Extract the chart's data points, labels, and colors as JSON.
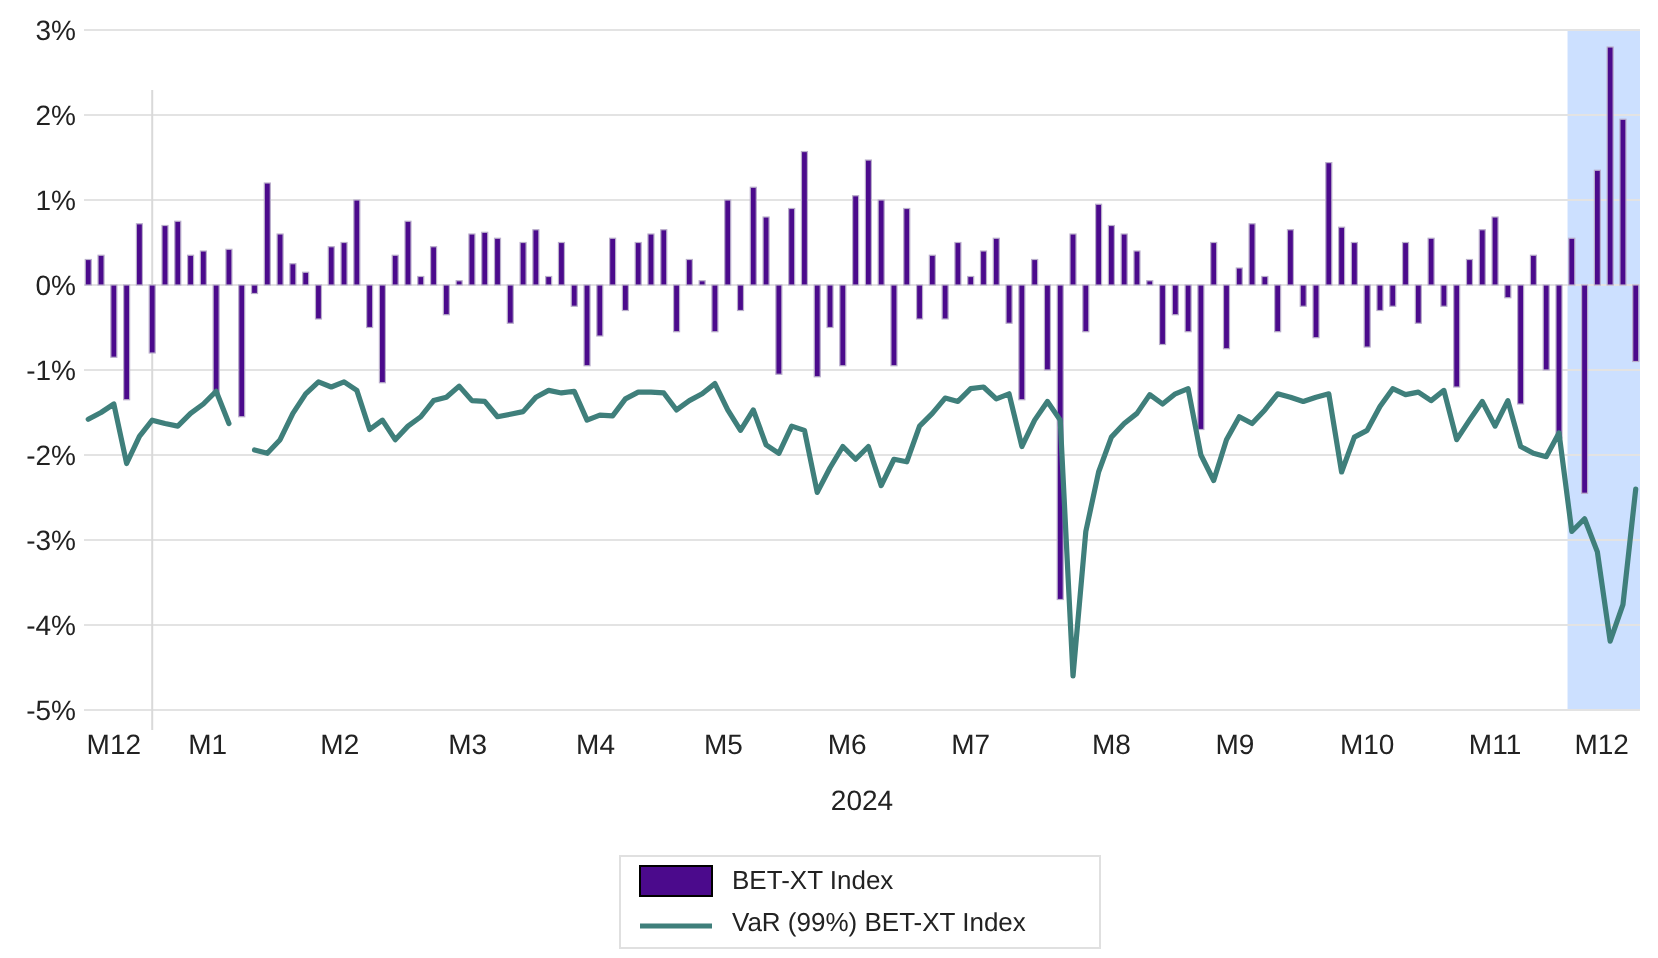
{
  "chart_data": {
    "type": "bar",
    "xlabel": "2024",
    "legend": "bottom",
    "grid": "y",
    "xlim": [
      "2023-12-16",
      "2024-12-15"
    ],
    "xticks": [
      {
        "value": "2023-12-23",
        "label": "M12"
      },
      {
        "value": "2024-01-14",
        "label": "M1"
      },
      {
        "value": "2024-02-14",
        "label": "M2"
      },
      {
        "value": "2024-03-15",
        "label": "M3"
      },
      {
        "value": "2024-04-14",
        "label": "M4"
      },
      {
        "value": "2024-05-14",
        "label": "M5"
      },
      {
        "value": "2024-06-12",
        "label": "M6"
      },
      {
        "value": "2024-07-11",
        "label": "M7"
      },
      {
        "value": "2024-08-13",
        "label": "M8"
      },
      {
        "value": "2024-09-11",
        "label": "M9"
      },
      {
        "value": "2024-10-12",
        "label": "M10"
      },
      {
        "value": "2024-11-11",
        "label": "M11"
      },
      {
        "value": "2024-12-06",
        "label": "M12"
      }
    ],
    "ylim": [
      -5,
      3
    ],
    "yticks": [
      {
        "value": -5,
        "label": "-5%"
      },
      {
        "value": -4,
        "label": "-4%"
      },
      {
        "value": -3,
        "label": "-3%"
      },
      {
        "value": -2,
        "label": "-2%"
      },
      {
        "value": -1,
        "label": "-1%"
      },
      {
        "value": 0,
        "label": "0%"
      },
      {
        "value": 1,
        "label": "1%"
      },
      {
        "value": 2,
        "label": "2%"
      },
      {
        "value": 3,
        "label": "3%"
      }
    ],
    "ref_lines": [
      {
        "axis": "x",
        "value": "2024-01-01",
        "color": "#d9d9d9"
      }
    ],
    "bands": [
      {
        "axis": "x",
        "from": "2024-11-28",
        "to": "2024-12-15",
        "color": "#cce0ff"
      }
    ],
    "x": [
      "2023-12-17",
      "2023-12-20",
      "2023-12-23",
      "2023-12-26",
      "2023-12-29",
      "2024-01-01",
      "2024-01-04",
      "2024-01-07",
      "2024-01-10",
      "2024-01-13",
      "2024-01-16",
      "2024-01-19",
      "2024-01-22",
      "2024-01-25",
      "2024-01-28",
      "2024-01-31",
      "2024-02-03",
      "2024-02-06",
      "2024-02-09",
      "2024-02-12",
      "2024-02-15",
      "2024-02-18",
      "2024-02-21",
      "2024-02-24",
      "2024-02-27",
      "2024-03-01",
      "2024-03-04",
      "2024-03-07",
      "2024-03-10",
      "2024-03-13",
      "2024-03-16",
      "2024-03-19",
      "2024-03-22",
      "2024-03-25",
      "2024-03-28",
      "2024-03-31",
      "2024-04-03",
      "2024-04-06",
      "2024-04-09",
      "2024-04-12",
      "2024-04-15",
      "2024-04-18",
      "2024-04-21",
      "2024-04-24",
      "2024-04-27",
      "2024-04-30",
      "2024-05-03",
      "2024-05-06",
      "2024-05-09",
      "2024-05-12",
      "2024-05-15",
      "2024-05-18",
      "2024-05-21",
      "2024-05-24",
      "2024-05-27",
      "2024-05-30",
      "2024-06-02",
      "2024-06-05",
      "2024-06-08",
      "2024-06-11",
      "2024-06-14",
      "2024-06-17",
      "2024-06-20",
      "2024-06-23",
      "2024-06-26",
      "2024-06-29",
      "2024-07-02",
      "2024-07-05",
      "2024-07-08",
      "2024-07-11",
      "2024-07-14",
      "2024-07-17",
      "2024-07-20",
      "2024-07-23",
      "2024-07-26",
      "2024-07-29",
      "2024-08-01",
      "2024-08-04",
      "2024-08-07",
      "2024-08-10",
      "2024-08-13",
      "2024-08-16",
      "2024-08-19",
      "2024-08-22",
      "2024-08-25",
      "2024-08-28",
      "2024-08-31",
      "2024-09-03",
      "2024-09-06",
      "2024-09-09",
      "2024-09-12",
      "2024-09-15",
      "2024-09-18",
      "2024-09-21",
      "2024-09-24",
      "2024-09-27",
      "2024-09-30",
      "2024-10-03",
      "2024-10-06",
      "2024-10-09",
      "2024-10-12",
      "2024-10-15",
      "2024-10-18",
      "2024-10-21",
      "2024-10-24",
      "2024-10-27",
      "2024-10-30",
      "2024-11-02",
      "2024-11-05",
      "2024-11-08",
      "2024-11-11",
      "2024-11-14",
      "2024-11-17",
      "2024-11-20",
      "2024-11-23",
      "2024-11-26",
      "2024-11-29",
      "2024-12-02",
      "2024-12-05",
      "2024-12-08",
      "2024-12-11",
      "2024-12-14"
    ],
    "series": [
      {
        "name": "BET-XT Index",
        "color": "#4b0a8c",
        "values": [
          0.3,
          0.35,
          -0.85,
          -1.35,
          0.72,
          -0.8,
          0.7,
          0.75,
          0.35,
          0.4,
          -1.3,
          0.42,
          -1.55,
          -0.1,
          1.2,
          0.6,
          0.25,
          0.15,
          -0.4,
          0.45,
          0.5,
          1.0,
          -0.5,
          -1.15,
          0.35,
          0.75,
          0.1,
          0.45,
          -0.35,
          0.05,
          0.6,
          0.62,
          0.55,
          -0.45,
          0.5,
          0.65,
          0.1,
          0.5,
          -0.25,
          -0.95,
          -0.6,
          0.55,
          -0.3,
          0.5,
          0.6,
          0.65,
          -0.55,
          0.3,
          0.05,
          -0.55,
          1.0,
          -0.3,
          1.15,
          0.8,
          -1.05,
          0.9,
          1.57,
          -1.08,
          -0.5,
          -0.95,
          1.05,
          1.47,
          1.0,
          -0.95,
          0.9,
          -0.4,
          0.35,
          -0.4,
          0.5,
          0.1,
          0.4,
          0.55,
          -0.45,
          -1.35,
          0.3,
          -1.0,
          -3.7,
          0.6,
          -0.55,
          0.95,
          0.7,
          0.6,
          0.4,
          0.05,
          -0.7,
          -0.35,
          -0.55,
          -1.7,
          0.5,
          -0.75,
          0.2,
          0.72,
          0.1,
          -0.55,
          0.65,
          -0.25,
          -0.62,
          1.44,
          0.68,
          0.5,
          -0.73,
          -0.3,
          -0.25,
          0.5,
          -0.45,
          0.55,
          -0.25,
          -1.2,
          0.3,
          0.65,
          0.8,
          -0.15,
          -1.4,
          0.35,
          -1.0,
          -1.8,
          0.55,
          -2.45,
          1.35,
          2.8,
          1.95,
          -0.9
        ]
      },
      {
        "name": "VaR (99%) BET-XT Index",
        "type": "line",
        "color": "#3f7f7b",
        "values": [
          -1.58,
          -1.5,
          -1.4,
          -2.1,
          -1.78,
          -1.59,
          -1.63,
          -1.66,
          -1.51,
          -1.4,
          -1.25,
          -1.63,
          null,
          -1.94,
          -1.98,
          -1.82,
          -1.51,
          -1.28,
          -1.14,
          -1.2,
          -1.14,
          -1.24,
          -1.7,
          -1.59,
          -1.82,
          -1.66,
          -1.55,
          -1.36,
          -1.32,
          -1.19,
          -1.36,
          -1.37,
          -1.55,
          -1.52,
          -1.49,
          -1.32,
          -1.24,
          -1.27,
          -1.25,
          -1.59,
          -1.53,
          -1.54,
          -1.34,
          -1.26,
          -1.26,
          -1.27,
          -1.47,
          -1.36,
          -1.28,
          -1.16,
          -1.47,
          -1.71,
          -1.47,
          -1.88,
          -1.98,
          -1.66,
          -1.71,
          -2.44,
          -2.15,
          -1.9,
          -2.05,
          -1.9,
          -2.36,
          -2.05,
          -2.08,
          -1.66,
          -1.51,
          -1.33,
          -1.37,
          -1.22,
          -1.2,
          -1.34,
          -1.28,
          -1.9,
          -1.59,
          -1.37,
          -1.59,
          -4.6,
          -2.9,
          -2.2,
          -1.79,
          -1.63,
          -1.51,
          -1.29,
          -1.4,
          -1.28,
          -1.22,
          -2.0,
          -2.3,
          -1.82,
          -1.55,
          -1.63,
          -1.47,
          -1.28,
          -1.32,
          -1.37,
          -1.32,
          -1.28,
          -2.2,
          -1.79,
          -1.71,
          -1.43,
          -1.22,
          -1.29,
          -1.26,
          -1.36,
          -1.24,
          -1.82,
          -1.59,
          -1.37,
          -1.66,
          -1.36,
          -1.9,
          -1.98,
          -2.02,
          -1.74,
          -2.9,
          -2.75,
          -3.14,
          -4.19,
          -3.76,
          -2.4
        ]
      }
    ]
  }
}
